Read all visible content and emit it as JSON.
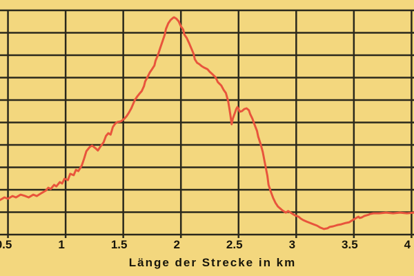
{
  "chart_data": {
    "type": "line",
    "title": "",
    "xlabel": "Länge der Strecke in km",
    "ylabel": "",
    "x_tick_labels": [
      "0.5",
      "1",
      "1.5",
      "2",
      "2.5",
      "3",
      "3.5",
      "4"
    ],
    "x_tick_values": [
      0.5,
      1,
      1.5,
      2,
      2.5,
      3,
      3.5,
      4
    ],
    "x_range_visible": [
      0.43,
      4.02
    ],
    "grid": true,
    "y_gridline_rows": 10,
    "y_axis_labels_visible": false,
    "legend_position": "none",
    "y_units_note": "y given in grid-row units (0 = bottom gridline, 10 = top border); y-axis labels are cropped out of the visible image",
    "colors": {
      "background": "#f3d77e",
      "grid": "#2a281c",
      "line": "#e8543c",
      "text": "#17150b"
    },
    "series": [
      {
        "name": "elevation-profile",
        "color": "#e8543c",
        "points": [
          [
            0.43,
            1.54
          ],
          [
            0.47,
            1.66
          ],
          [
            0.5,
            1.6
          ],
          [
            0.54,
            1.72
          ],
          [
            0.57,
            1.66
          ],
          [
            0.61,
            1.78
          ],
          [
            0.65,
            1.72
          ],
          [
            0.68,
            1.66
          ],
          [
            0.72,
            1.78
          ],
          [
            0.75,
            1.72
          ],
          [
            0.79,
            1.85
          ],
          [
            0.83,
            1.97
          ],
          [
            0.85,
            2.09
          ],
          [
            0.87,
            2.03
          ],
          [
            0.9,
            2.22
          ],
          [
            0.92,
            2.15
          ],
          [
            0.95,
            2.34
          ],
          [
            0.97,
            2.28
          ],
          [
            0.99,
            2.49
          ],
          [
            1.02,
            2.43
          ],
          [
            1.04,
            2.71
          ],
          [
            1.07,
            2.65
          ],
          [
            1.09,
            2.89
          ],
          [
            1.11,
            2.83
          ],
          [
            1.14,
            3.08
          ],
          [
            1.16,
            3.38
          ],
          [
            1.18,
            3.72
          ],
          [
            1.21,
            3.91
          ],
          [
            1.23,
            3.97
          ],
          [
            1.26,
            3.85
          ],
          [
            1.28,
            3.75
          ],
          [
            1.3,
            3.91
          ],
          [
            1.33,
            4.12
          ],
          [
            1.35,
            4.4
          ],
          [
            1.37,
            4.52
          ],
          [
            1.39,
            4.46
          ],
          [
            1.41,
            4.8
          ],
          [
            1.43,
            4.95
          ],
          [
            1.45,
            5.02
          ],
          [
            1.48,
            5.05
          ],
          [
            1.51,
            5.17
          ],
          [
            1.53,
            5.29
          ],
          [
            1.55,
            5.45
          ],
          [
            1.57,
            5.63
          ],
          [
            1.59,
            5.88
          ],
          [
            1.6,
            6.0
          ],
          [
            1.62,
            6.15
          ],
          [
            1.64,
            6.28
          ],
          [
            1.66,
            6.4
          ],
          [
            1.68,
            6.62
          ],
          [
            1.69,
            6.83
          ],
          [
            1.71,
            7.02
          ],
          [
            1.73,
            7.23
          ],
          [
            1.75,
            7.38
          ],
          [
            1.77,
            7.54
          ],
          [
            1.78,
            7.75
          ],
          [
            1.8,
            8.0
          ],
          [
            1.82,
            8.31
          ],
          [
            1.84,
            8.62
          ],
          [
            1.86,
            8.92
          ],
          [
            1.87,
            9.17
          ],
          [
            1.89,
            9.42
          ],
          [
            1.91,
            9.57
          ],
          [
            1.93,
            9.66
          ],
          [
            1.94,
            9.69
          ],
          [
            1.96,
            9.63
          ],
          [
            1.98,
            9.51
          ],
          [
            2.0,
            9.29
          ],
          [
            2.02,
            9.14
          ],
          [
            2.03,
            8.92
          ],
          [
            2.05,
            8.77
          ],
          [
            2.07,
            8.55
          ],
          [
            2.09,
            8.31
          ],
          [
            2.11,
            8.06
          ],
          [
            2.12,
            7.82
          ],
          [
            2.14,
            7.66
          ],
          [
            2.16,
            7.6
          ],
          [
            2.18,
            7.51
          ],
          [
            2.2,
            7.45
          ],
          [
            2.23,
            7.38
          ],
          [
            2.25,
            7.26
          ],
          [
            2.27,
            7.17
          ],
          [
            2.3,
            7.02
          ],
          [
            2.32,
            6.8
          ],
          [
            2.35,
            6.65
          ],
          [
            2.37,
            6.46
          ],
          [
            2.39,
            6.31
          ],
          [
            2.41,
            5.94
          ],
          [
            2.42,
            5.63
          ],
          [
            2.43,
            5.29
          ],
          [
            2.44,
            4.92
          ],
          [
            2.45,
            5.17
          ],
          [
            2.47,
            5.45
          ],
          [
            2.48,
            5.6
          ],
          [
            2.49,
            5.69
          ],
          [
            2.5,
            5.6
          ],
          [
            2.51,
            5.48
          ],
          [
            2.53,
            5.51
          ],
          [
            2.55,
            5.6
          ],
          [
            2.57,
            5.63
          ],
          [
            2.59,
            5.54
          ],
          [
            2.6,
            5.38
          ],
          [
            2.62,
            5.17
          ],
          [
            2.64,
            4.89
          ],
          [
            2.66,
            4.62
          ],
          [
            2.67,
            4.37
          ],
          [
            2.69,
            4.06
          ],
          [
            2.71,
            3.69
          ],
          [
            2.73,
            3.14
          ],
          [
            2.75,
            2.62
          ],
          [
            2.76,
            2.22
          ],
          [
            2.78,
            1.91
          ],
          [
            2.8,
            1.63
          ],
          [
            2.82,
            1.42
          ],
          [
            2.84,
            1.26
          ],
          [
            2.86,
            1.17
          ],
          [
            2.88,
            1.08
          ],
          [
            2.91,
            0.98
          ],
          [
            2.93,
            1.05
          ],
          [
            2.94,
            1.02
          ],
          [
            2.97,
            0.92
          ],
          [
            2.99,
            0.86
          ],
          [
            3.02,
            0.8
          ],
          [
            3.04,
            0.71
          ],
          [
            3.06,
            0.65
          ],
          [
            3.09,
            0.58
          ],
          [
            3.12,
            0.52
          ],
          [
            3.15,
            0.46
          ],
          [
            3.18,
            0.4
          ],
          [
            3.21,
            0.31
          ],
          [
            3.24,
            0.25
          ],
          [
            3.27,
            0.28
          ],
          [
            3.29,
            0.34
          ],
          [
            3.32,
            0.37
          ],
          [
            3.34,
            0.4
          ],
          [
            3.36,
            0.43
          ],
          [
            3.39,
            0.46
          ],
          [
            3.41,
            0.49
          ],
          [
            3.43,
            0.52
          ],
          [
            3.46,
            0.55
          ],
          [
            3.48,
            0.62
          ],
          [
            3.5,
            0.68
          ],
          [
            3.52,
            0.74
          ],
          [
            3.54,
            0.8
          ],
          [
            3.55,
            0.74
          ],
          [
            3.57,
            0.77
          ],
          [
            3.59,
            0.83
          ],
          [
            3.61,
            0.86
          ],
          [
            3.63,
            0.89
          ],
          [
            3.64,
            0.92
          ],
          [
            3.67,
            0.95
          ],
          [
            3.72,
            0.95
          ],
          [
            3.78,
            0.98
          ],
          [
            3.84,
            0.95
          ],
          [
            3.9,
            0.98
          ],
          [
            3.96,
            0.95
          ],
          [
            4.02,
            0.98
          ]
        ]
      }
    ]
  }
}
